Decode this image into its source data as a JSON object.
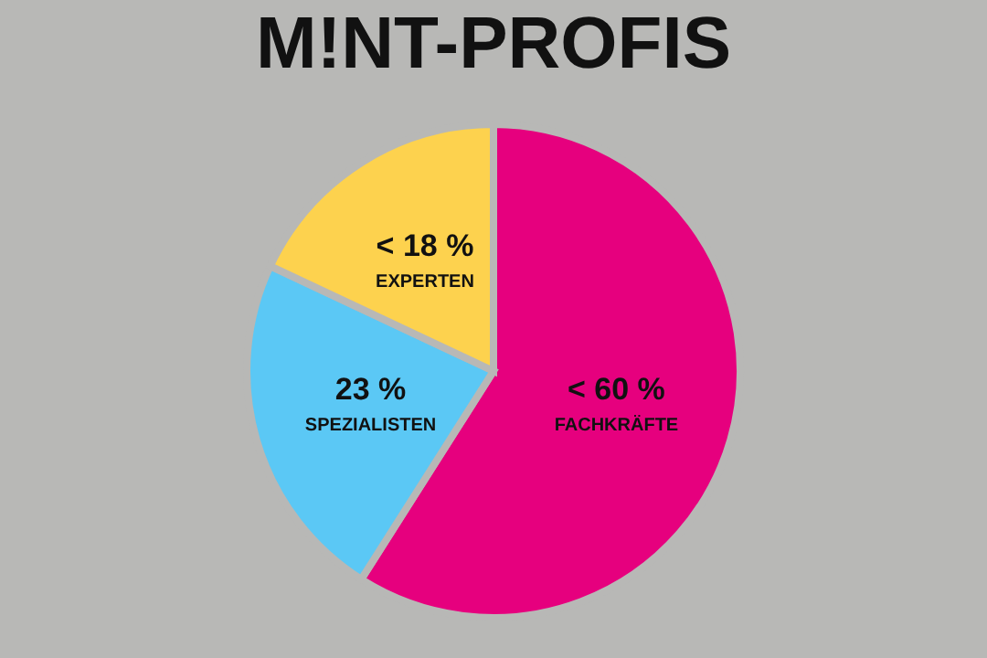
{
  "chart_data": {
    "type": "pie",
    "title": "M!NT-PROFIS",
    "categories": [
      "FACHKRÄFTE",
      "SPEZIALISTEN",
      "EXPERTEN"
    ],
    "values": [
      59,
      23,
      18
    ],
    "value_labels": [
      "< 60 %",
      "23 %",
      "< 18 %"
    ],
    "colors": [
      "#e6007e",
      "#5bc8f5",
      "#fdd24e"
    ],
    "legend": false
  }
}
